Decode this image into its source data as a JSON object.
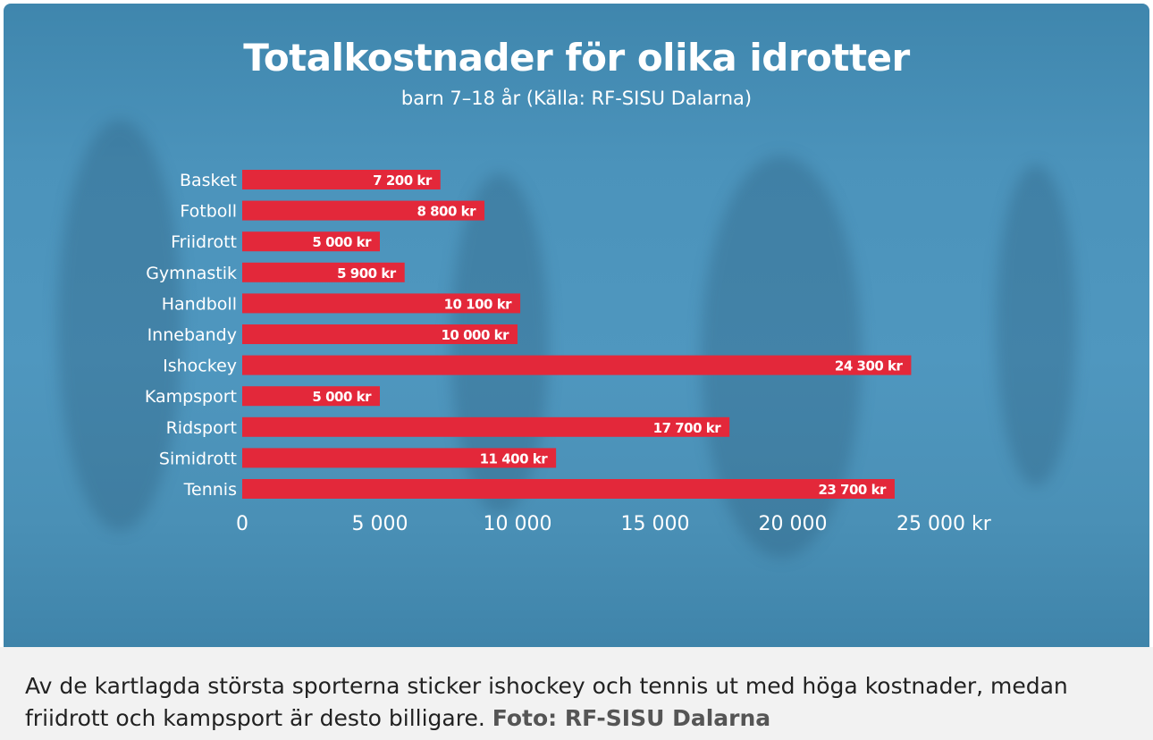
{
  "chart_data": {
    "type": "bar",
    "orientation": "horizontal",
    "title": "Totalkostnader för olika idrotter",
    "subtitle": "barn 7–18 år  (Källa: RF-SISU Dalarna)",
    "categories": [
      "Basket",
      "Fotboll",
      "Friidrott",
      "Gymnastik",
      "Handboll",
      "Innebandy",
      "Ishockey",
      "Kampsport",
      "Ridsport",
      "Simidrott",
      "Tennis"
    ],
    "values": [
      7200,
      8800,
      5000,
      5900,
      10100,
      10000,
      24300,
      5000,
      17700,
      11400,
      23700
    ],
    "value_labels": [
      "7 200 kr",
      "8 800 kr",
      "5 000 kr",
      "5 900 kr",
      "10 100 kr",
      "10 000 kr",
      "24 300 kr",
      "5 000 kr",
      "17 700 kr",
      "11 400 kr",
      "23 700 kr"
    ],
    "xticks": [
      0,
      5000,
      10000,
      15000,
      20000,
      25000
    ],
    "xtick_labels": [
      "0",
      "5 000",
      "10 000",
      "15 000",
      "20 000",
      "25 000  kr"
    ],
    "xlim": [
      0,
      25000
    ],
    "bar_color": "#e3283a",
    "grid": false
  },
  "caption": {
    "text": "Av de kartlagda största sporterna sticker ishockey och tennis ut med höga kostnader, medan friidrott och kampsport är desto billigare.",
    "credit": "Foto: RF-SISU Dalarna"
  }
}
